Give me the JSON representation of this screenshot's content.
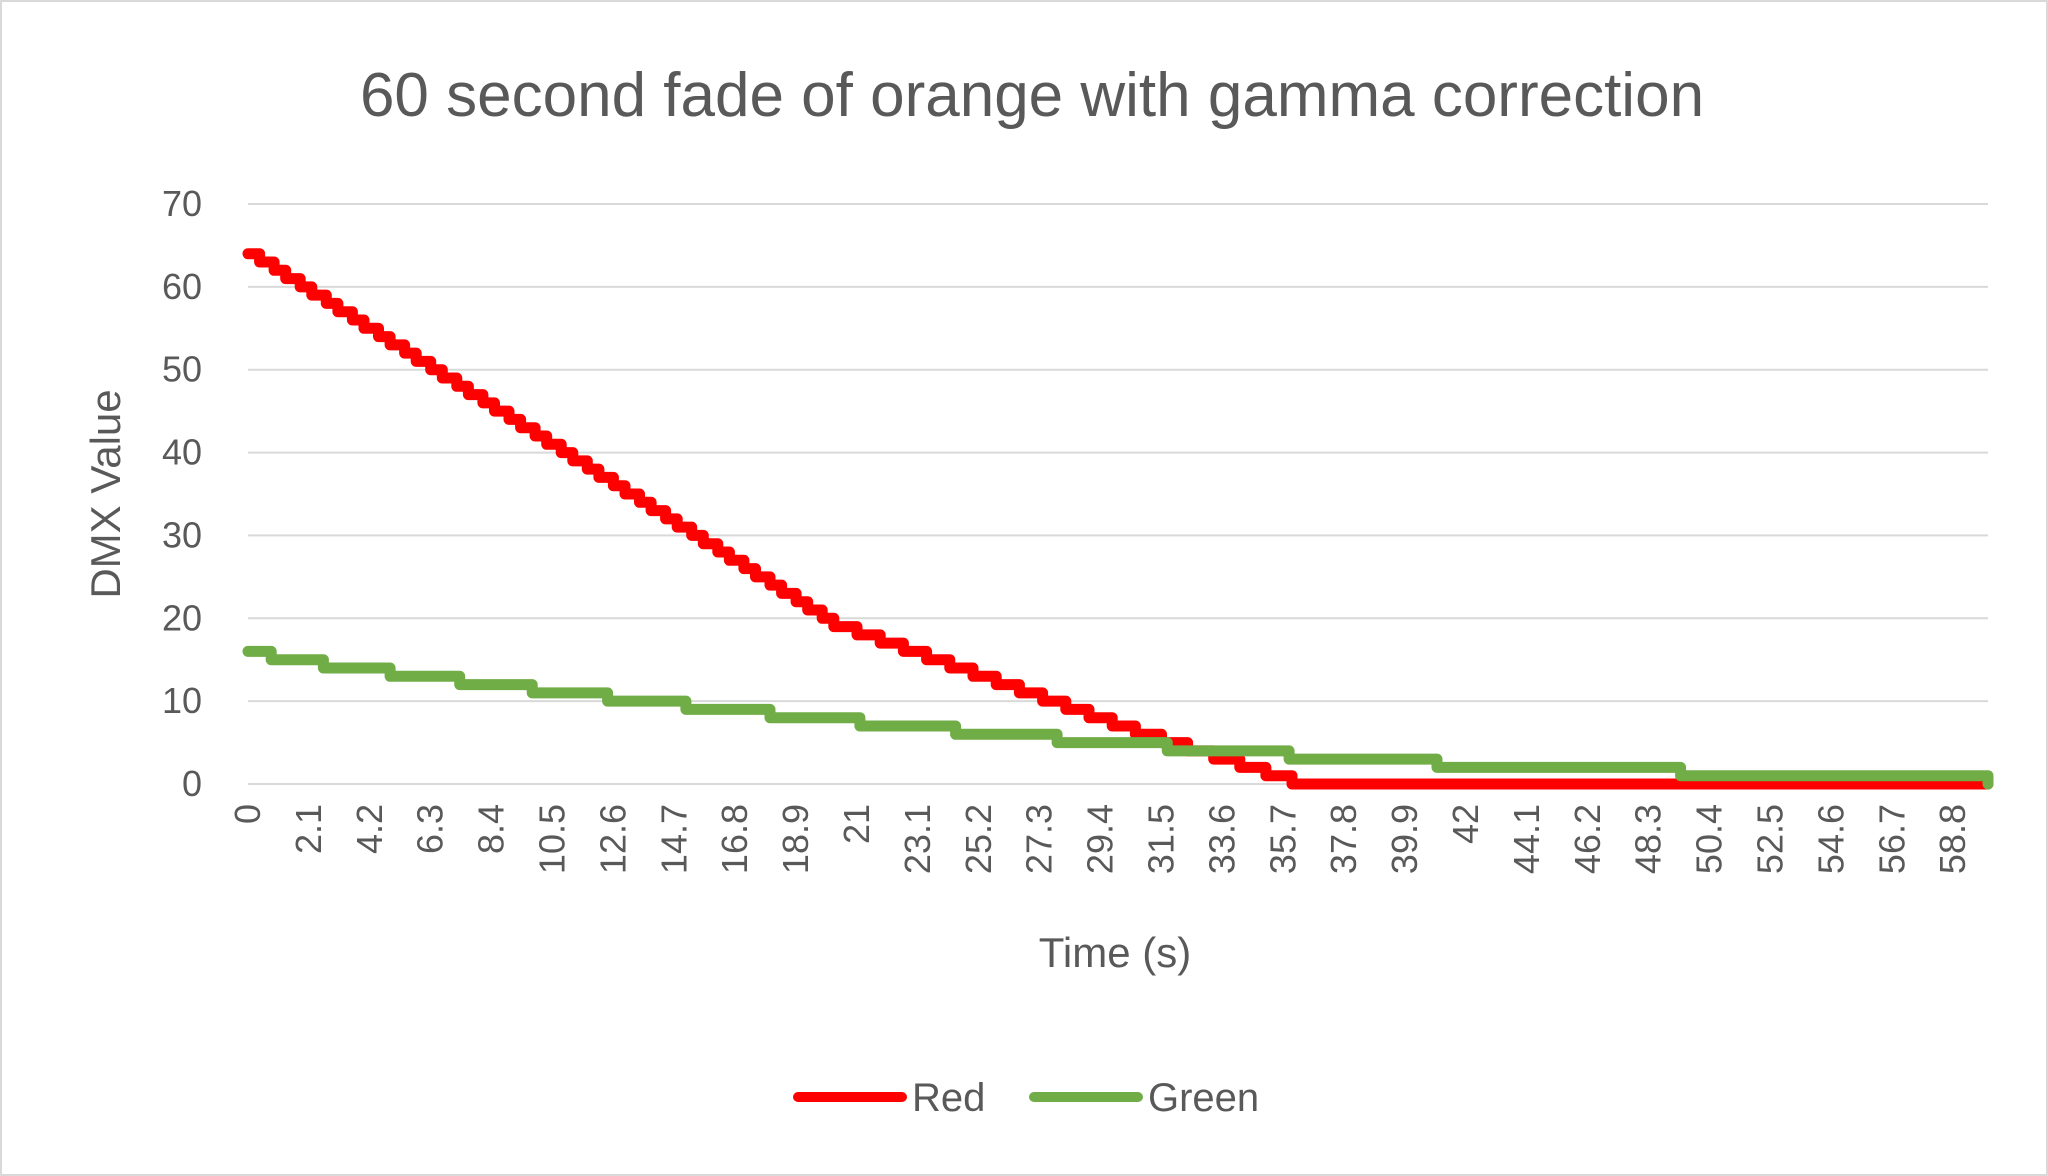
{
  "chart_data": {
    "type": "line",
    "title": "60 second fade of orange with gamma correction",
    "xlabel": "Time (s)",
    "ylabel": "DMX Value",
    "ylim": [
      0,
      70
    ],
    "yticks": [
      "0",
      "10",
      "20",
      "30",
      "40",
      "50",
      "60",
      "70"
    ],
    "xlim": [
      0,
      60
    ],
    "xticks": [
      "0",
      "2.1",
      "4.2",
      "6.3",
      "8.4",
      "10.5",
      "12.6",
      "14.7",
      "16.8",
      "18.9",
      "21",
      "23.1",
      "25.2",
      "27.3",
      "29.4",
      "31.5",
      "33.6",
      "35.7",
      "37.8",
      "39.9",
      "42",
      "44.1",
      "46.2",
      "48.3",
      "50.4",
      "52.5",
      "54.6",
      "56.7",
      "58.8"
    ],
    "grid": true,
    "legend_position": "bottom",
    "series": [
      {
        "name": "Red",
        "color": "#ff0000",
        "x": [
          0,
          0.4,
          0.9,
          1.3,
          1.8,
          2.2,
          2.7,
          3.1,
          3.6,
          4.0,
          4.5,
          4.9,
          5.4,
          5.8,
          6.3,
          6.7,
          7.2,
          7.6,
          8.1,
          8.5,
          9.0,
          9.4,
          9.9,
          10.3,
          10.8,
          11.2,
          11.7,
          12.1,
          12.6,
          13.0,
          13.5,
          13.9,
          14.4,
          14.8,
          15.3,
          15.7,
          16.2,
          16.6,
          17.1,
          17.5,
          18.0,
          18.4,
          18.9,
          19.3,
          19.8,
          20.2,
          21.0,
          21.8,
          22.6,
          23.4,
          24.2,
          25.0,
          25.8,
          26.6,
          27.4,
          28.2,
          29.0,
          29.8,
          30.6,
          31.5,
          32.4,
          33.3,
          34.2,
          35.1,
          36.0,
          37.0,
          38.0,
          39.1,
          40.2,
          41.4,
          42.6,
          43.9,
          45.3,
          46.8,
          48.4,
          50.1,
          54.7,
          60.0
        ],
        "y": [
          64,
          63,
          62,
          61,
          60,
          59,
          58,
          57,
          56,
          55,
          54,
          53,
          52,
          51,
          50,
          49,
          48,
          47,
          46,
          45,
          44,
          43,
          42,
          41,
          40,
          39,
          38,
          37,
          36,
          35,
          34,
          33,
          32,
          31,
          30,
          29,
          28,
          27,
          26,
          25,
          24,
          23,
          22,
          21,
          20,
          19,
          18,
          17,
          16,
          15,
          14,
          13,
          12,
          11,
          10,
          9,
          8,
          7,
          6,
          5,
          4,
          3,
          2,
          1,
          0,
          0,
          0,
          0,
          0,
          0,
          0,
          0,
          0,
          0,
          0,
          0,
          0,
          0
        ],
        "y_note": ""
      },
      {
        "name": "Green",
        "color": "#70ad47",
        "x": [
          0,
          0.8,
          2.6,
          4.9,
          7.3,
          9.8,
          12.4,
          15.1,
          18.0,
          21.1,
          24.4,
          27.9,
          31.7,
          35.9,
          41.0,
          49.4,
          60.0
        ],
        "y": [
          16,
          15,
          14,
          13,
          12,
          11,
          10,
          9,
          8,
          7,
          6,
          5,
          4,
          3,
          2,
          1,
          0
        ]
      }
    ]
  }
}
